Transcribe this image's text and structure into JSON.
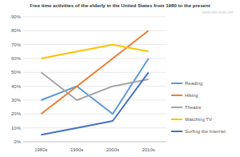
{
  "chart_data": {
    "type": "line",
    "title": "Free time activities of the elderly in the United States from 1980 to the present",
    "annotations": [
      "www.ielts-exam.net"
    ],
    "categories": [
      "1980s",
      "1990s",
      "2000s",
      "2010s"
    ],
    "series": [
      {
        "name": "Reading",
        "color": "#5b9bd5",
        "values": [
          30,
          40,
          20,
          60
        ]
      },
      {
        "name": "Hiking",
        "color": "#ed7d31",
        "values": [
          20,
          40,
          60,
          80
        ]
      },
      {
        "name": "Theatre",
        "color": "#a5a5a5",
        "values": [
          50,
          30,
          40,
          45
        ]
      },
      {
        "name": "Watching TV",
        "color": "#ffc000",
        "values": [
          60,
          65,
          70,
          65
        ]
      },
      {
        "name": "Surfing the Internet",
        "color": "#4472c4",
        "values": [
          5,
          10,
          15,
          50
        ]
      }
    ],
    "ylim": [
      0,
      90
    ],
    "yticks": [
      {
        "value": 0,
        "label": "0%"
      },
      {
        "value": 10,
        "label": "10%"
      },
      {
        "value": 20,
        "label": "20%"
      },
      {
        "value": 30,
        "label": "30%"
      },
      {
        "value": 40,
        "label": "40%"
      },
      {
        "value": 50,
        "label": "50%"
      },
      {
        "value": 60,
        "label": "60%"
      },
      {
        "value": 70,
        "label": "70%"
      },
      {
        "value": 80,
        "label": "80%"
      },
      {
        "value": 90,
        "label": "90%"
      }
    ],
    "grid": true,
    "legend": "right"
  }
}
